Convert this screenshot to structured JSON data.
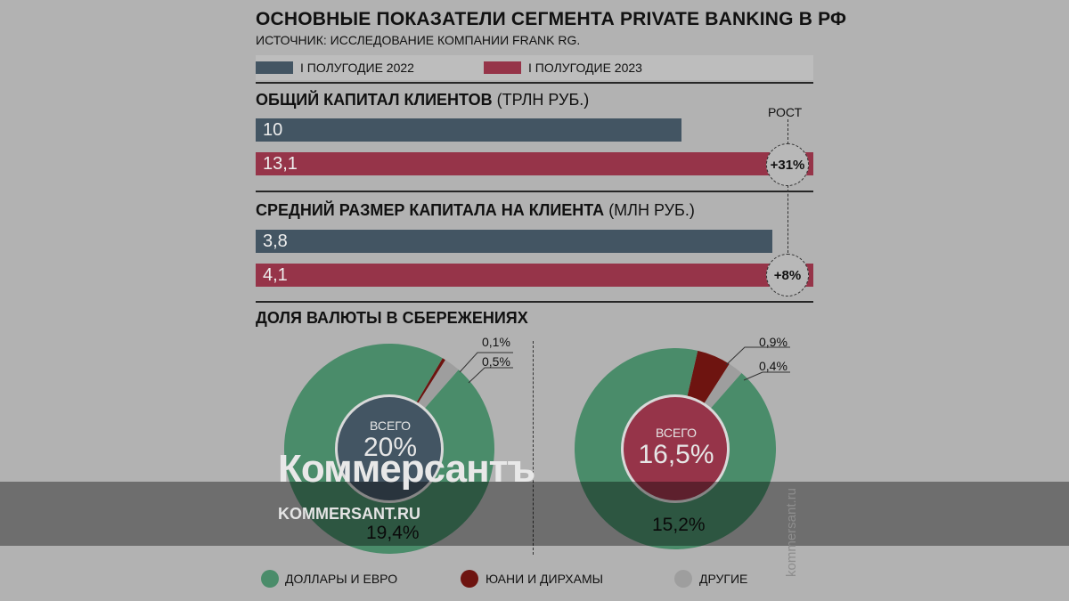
{
  "title": "ОСНОВНЫЕ ПОКАЗАТЕЛИ СЕГМЕНТА PRIVATE BANKING В РФ",
  "source": "ИСТОЧНИК: ИССЛЕДОВАНИЕ КОМПАНИИ FRANK RG.",
  "colors": {
    "h1_2022": "#435563",
    "h1_2023": "#963449",
    "dollars_euro": "#4a8c6a",
    "yuan_dirham": "#6e1410",
    "other": "#9e9e9e"
  },
  "legend": {
    "series_2022": "I ПОЛУГОДИЕ 2022",
    "series_2023": "I ПОЛУГОДИЕ 2023"
  },
  "growth_header": "РОСТ",
  "section_capital": {
    "title": "ОБЩИЙ КАПИТАЛ КЛИЕНТОВ",
    "unit": "(ТРЛН РУБ.)",
    "value_2022": "10",
    "value_2023": "13,1",
    "growth": "+31%"
  },
  "section_avg": {
    "title": "СРЕДНИЙ РАЗМЕР КАПИТАЛА НА КЛИЕНТА",
    "unit": "(МЛН РУБ.)",
    "value_2022": "3,8",
    "value_2023": "4,1",
    "growth": "+8%"
  },
  "section_currency": {
    "title": "ДОЛЯ ВАЛЮТЫ В СБЕРЕЖЕНИЯХ",
    "left": {
      "total_label": "ВСЕГО",
      "total_value": "20%",
      "main_pct": "19,4%",
      "small_top": "0,1%",
      "small_bottom": "0,5%"
    },
    "right": {
      "total_label": "ВСЕГО",
      "total_value": "16,5%",
      "main_pct": "15,2%",
      "small_top": "0,9%",
      "small_bottom": "0,4%"
    }
  },
  "bottom_legend": {
    "item1": "ДОЛЛАРЫ И ЕВРО",
    "item2": "ЮАНИ И ДИРХАМЫ",
    "item3": "ДРУГИЕ"
  },
  "watermark": {
    "logo": "Коммерсантъ",
    "site": "KOMMERSANT.RU",
    "vertical": "kommersant.ru"
  },
  "chart_data": [
    {
      "type": "bar",
      "title": "ОБЩИЙ КАПИТАЛ КЛИЕНТОВ",
      "unit": "ТРЛН РУБ.",
      "series": [
        {
          "name": "I ПОЛУГОДИЕ 2022",
          "values": [
            10
          ]
        },
        {
          "name": "I ПОЛУГОДИЕ 2023",
          "values": [
            13.1
          ]
        }
      ],
      "growth": "+31%"
    },
    {
      "type": "bar",
      "title": "СРЕДНИЙ РАЗМЕР КАПИТАЛА НА КЛИЕНТА",
      "unit": "МЛН РУБ.",
      "series": [
        {
          "name": "I ПОЛУГОДИЕ 2022",
          "values": [
            3.8
          ]
        },
        {
          "name": "I ПОЛУГОДИЕ 2023",
          "values": [
            4.1
          ]
        }
      ],
      "growth": "+8%"
    },
    {
      "type": "pie",
      "title": "ДОЛЯ ВАЛЮТЫ В СБЕРЕЖЕНИЯХ",
      "series_name": "I ПОЛУГОДИЕ 2022",
      "total": 20,
      "categories": [
        "ДОЛЛАРЫ И ЕВРО",
        "ЮАНИ И ДИРХАМЫ",
        "ДРУГИЕ"
      ],
      "values": [
        19.4,
        0.1,
        0.5
      ]
    },
    {
      "type": "pie",
      "title": "ДОЛЯ ВАЛЮТЫ В СБЕРЕЖЕНИЯХ",
      "series_name": "I ПОЛУГОДИЕ 2023",
      "total": 16.5,
      "categories": [
        "ДОЛЛАРЫ И ЕВРО",
        "ЮАНИ И ДИРХАМЫ",
        "ДРУГИЕ"
      ],
      "values": [
        15.2,
        0.9,
        0.4
      ]
    }
  ]
}
